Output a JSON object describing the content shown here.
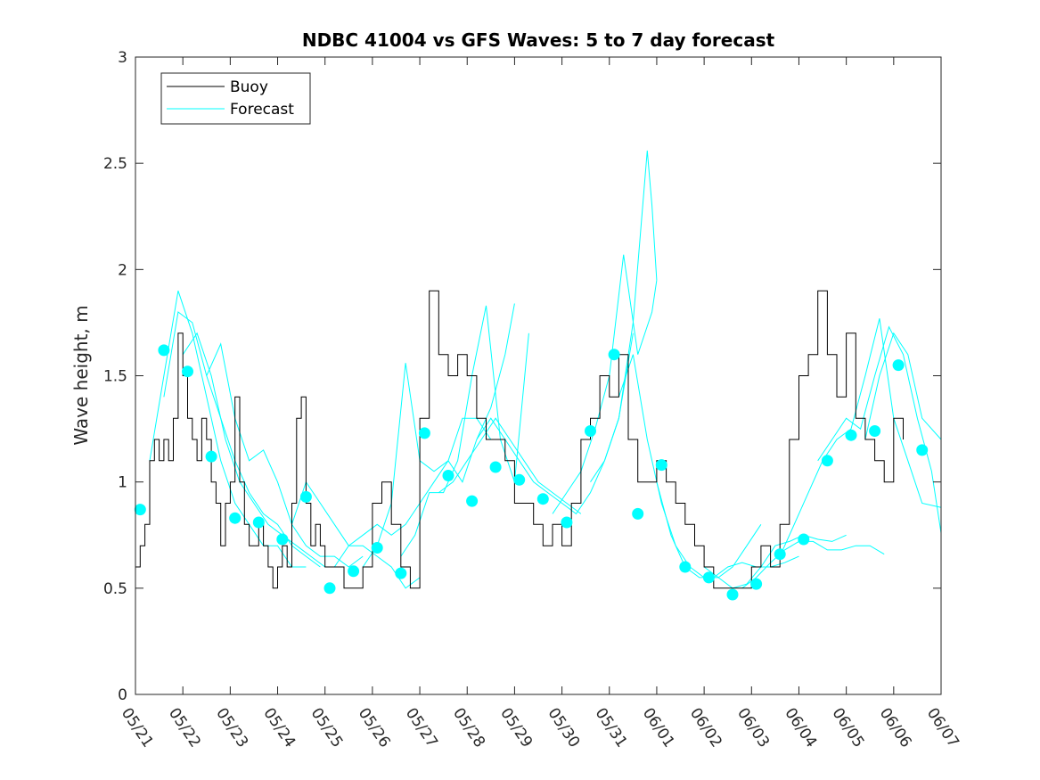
{
  "chart_data": {
    "type": "line",
    "title": "NDBC 41004 vs GFS Waves: 5 to 7 day forecast",
    "xlabel": "",
    "ylabel": "Wave height, m",
    "ylim": [
      0,
      3
    ],
    "xlim": [
      "05/21",
      "06/07"
    ],
    "yticks": [
      0,
      0.5,
      1,
      1.5,
      2,
      2.5,
      3
    ],
    "xticks": [
      "05/21",
      "05/22",
      "05/23",
      "05/24",
      "05/25",
      "05/26",
      "05/27",
      "05/28",
      "05/29",
      "05/30",
      "05/31",
      "06/01",
      "06/02",
      "06/03",
      "06/04",
      "06/05",
      "06/06",
      "06/07"
    ],
    "legend": {
      "position": "top-left",
      "entries": [
        "Buoy",
        "Forecast"
      ]
    },
    "colors": {
      "buoy": "#000000",
      "forecast": "#00ffff",
      "markers": "#00ffff"
    },
    "grid": false,
    "buoy": {
      "name": "Buoy",
      "x_days": [
        0,
        0.1,
        0.2,
        0.3,
        0.4,
        0.5,
        0.6,
        0.7,
        0.8,
        0.9,
        1.0,
        1.1,
        1.2,
        1.3,
        1.4,
        1.5,
        1.6,
        1.7,
        1.8,
        1.9,
        2.0,
        2.1,
        2.2,
        2.3,
        2.4,
        2.5,
        2.6,
        2.7,
        2.8,
        2.9,
        3.0,
        3.1,
        3.2,
        3.3,
        3.4,
        3.5,
        3.6,
        3.7,
        3.8,
        3.9,
        4.0,
        4.2,
        4.4,
        4.6,
        4.8,
        5.0,
        5.2,
        5.4,
        5.6,
        5.8,
        6.0,
        6.2,
        6.4,
        6.6,
        6.8,
        7.0,
        7.2,
        7.4,
        7.6,
        7.8,
        8.0,
        8.2,
        8.4,
        8.6,
        8.8,
        9.0,
        9.2,
        9.4,
        9.6,
        9.8,
        10.0,
        10.2,
        10.4,
        10.6,
        10.8,
        11.0,
        11.2,
        11.4,
        11.6,
        11.8,
        12.0,
        12.2,
        12.4,
        12.6,
        12.8,
        13.0,
        13.2,
        13.4,
        13.6,
        13.8,
        14.0,
        14.2,
        14.4,
        14.6,
        14.8,
        15.0,
        15.2,
        15.4,
        15.6,
        15.8,
        16.0,
        16.2
      ],
      "values": [
        0.6,
        0.7,
        0.8,
        1.1,
        1.2,
        1.1,
        1.2,
        1.1,
        1.3,
        1.7,
        1.5,
        1.3,
        1.2,
        1.1,
        1.3,
        1.2,
        1.0,
        0.9,
        0.7,
        0.9,
        1.0,
        1.4,
        1.0,
        0.8,
        0.7,
        0.7,
        0.8,
        0.7,
        0.6,
        0.5,
        0.6,
        0.7,
        0.6,
        0.9,
        1.3,
        1.4,
        0.9,
        0.7,
        0.8,
        0.7,
        0.6,
        0.6,
        0.5,
        0.5,
        0.6,
        0.9,
        1.0,
        0.8,
        0.6,
        0.5,
        1.3,
        1.9,
        1.6,
        1.5,
        1.6,
        1.5,
        1.3,
        1.2,
        1.2,
        1.1,
        0.9,
        0.9,
        0.8,
        0.7,
        0.8,
        0.7,
        0.9,
        1.2,
        1.3,
        1.5,
        1.4,
        1.6,
        1.2,
        1.0,
        1.0,
        1.1,
        1.0,
        0.9,
        0.8,
        0.7,
        0.6,
        0.5,
        0.5,
        0.5,
        0.5,
        0.6,
        0.7,
        0.6,
        0.8,
        1.2,
        1.5,
        1.6,
        1.9,
        1.6,
        1.4,
        1.7,
        1.3,
        1.2,
        1.1,
        1.0,
        1.3,
        1.2
      ]
    },
    "forecast_runs": [
      {
        "x_days": [
          0.3,
          0.6,
          0.9,
          1.2,
          1.5,
          1.8,
          2.1,
          2.4,
          2.7,
          3.0,
          3.3,
          3.6
        ],
        "values": [
          1.1,
          1.5,
          1.9,
          1.7,
          1.4,
          1.1,
          0.9,
          0.8,
          0.7,
          0.7,
          0.6,
          0.6
        ]
      },
      {
        "x_days": [
          0.6,
          0.9,
          1.2,
          1.5,
          1.8,
          2.1,
          2.4,
          2.7,
          3.0,
          3.3,
          3.6,
          3.9
        ],
        "values": [
          1.4,
          1.8,
          1.75,
          1.5,
          1.3,
          1.1,
          0.95,
          0.85,
          0.8,
          0.7,
          0.65,
          0.6
        ]
      },
      {
        "x_days": [
          1.0,
          1.3,
          1.6,
          1.9,
          2.2,
          2.5,
          2.8,
          3.1,
          3.4,
          3.7,
          4.0,
          4.3
        ],
        "values": [
          1.6,
          1.7,
          1.5,
          1.2,
          1.0,
          0.9,
          0.8,
          0.75,
          0.7,
          0.65,
          0.6,
          0.6
        ]
      },
      {
        "x_days": [
          1.5,
          1.8,
          2.1,
          2.4,
          2.7,
          3.0,
          3.3,
          3.6,
          3.9,
          4.2,
          4.5,
          4.8
        ],
        "values": [
          1.5,
          1.65,
          1.3,
          1.1,
          1.15,
          1.0,
          0.8,
          0.7,
          0.65,
          0.65,
          0.6,
          0.65
        ]
      },
      {
        "x_days": [
          3.3,
          3.6,
          3.9,
          4.2,
          4.5,
          4.8,
          5.1,
          5.4,
          5.7,
          6.0
        ],
        "values": [
          0.8,
          1.0,
          0.9,
          0.8,
          0.7,
          0.7,
          0.65,
          0.6,
          0.5,
          0.55
        ]
      },
      {
        "x_days": [
          4.2,
          4.5,
          4.8,
          5.1,
          5.4,
          5.7,
          6.0,
          6.3,
          6.6,
          6.9,
          7.2,
          7.5
        ],
        "values": [
          0.6,
          0.7,
          0.75,
          0.8,
          0.75,
          0.8,
          0.9,
          1.0,
          1.1,
          1.3,
          1.3,
          1.2
        ]
      },
      {
        "x_days": [
          4.8,
          5.1,
          5.4,
          5.7,
          6.0,
          6.3,
          6.6,
          6.9,
          7.2,
          7.5,
          7.8,
          8.0
        ],
        "values": [
          0.6,
          0.7,
          0.9,
          1.56,
          1.1,
          1.05,
          1.1,
          1.0,
          1.2,
          1.35,
          1.6,
          1.84
        ]
      },
      {
        "x_days": [
          5.6,
          5.9,
          6.2,
          6.5,
          6.8,
          7.1,
          7.4,
          7.7,
          8.0,
          8.3
        ],
        "values": [
          0.65,
          0.75,
          0.95,
          0.95,
          1.1,
          1.5,
          1.83,
          1.2,
          1.0,
          1.7
        ]
      },
      {
        "x_days": [
          6.4,
          6.7,
          7.0,
          7.3,
          7.6,
          7.9,
          8.2,
          8.5,
          8.8,
          9.1,
          9.4
        ],
        "values": [
          0.95,
          1.0,
          1.1,
          1.2,
          1.3,
          1.2,
          1.1,
          1.0,
          0.95,
          0.9,
          0.85
        ]
      },
      {
        "x_days": [
          7.2,
          7.5,
          7.8,
          8.1,
          8.4,
          8.7,
          9.0,
          9.3,
          9.6,
          9.9,
          10.2,
          10.5
        ],
        "values": [
          1.2,
          1.3,
          1.2,
          1.1,
          1.0,
          0.95,
          0.9,
          0.85,
          0.95,
          1.1,
          1.3,
          1.7
        ]
      },
      {
        "x_days": [
          8.8,
          9.1,
          9.4,
          9.7,
          10.0,
          10.3,
          10.6,
          10.9,
          11.0
        ],
        "values": [
          0.85,
          0.95,
          1.05,
          1.25,
          1.5,
          2.07,
          1.6,
          1.8,
          1.95
        ]
      },
      {
        "x_days": [
          9.6,
          9.9,
          10.2,
          10.5,
          10.8,
          10.9,
          11.0
        ],
        "values": [
          1.0,
          1.1,
          1.3,
          1.75,
          2.56,
          2.3,
          1.95
        ]
      },
      {
        "x_days": [
          10.2,
          10.5,
          10.8,
          11.1,
          11.4,
          11.7,
          12.0,
          12.3,
          12.6,
          12.9,
          13.2
        ],
        "values": [
          1.4,
          1.6,
          1.2,
          0.9,
          0.7,
          0.6,
          0.55,
          0.55,
          0.6,
          0.7,
          0.8
        ]
      },
      {
        "x_days": [
          11.0,
          11.3,
          11.6,
          11.9,
          12.2,
          12.5,
          12.8,
          13.1,
          13.4,
          13.7,
          14.0
        ],
        "values": [
          1.0,
          0.75,
          0.6,
          0.55,
          0.55,
          0.6,
          0.62,
          0.6,
          0.6,
          0.62,
          0.65
        ]
      },
      {
        "x_days": [
          12.0,
          12.3,
          12.6,
          12.9,
          13.2,
          13.5,
          13.8,
          14.1,
          14.4,
          14.7,
          15.0
        ],
        "values": [
          0.6,
          0.55,
          0.5,
          0.52,
          0.6,
          0.7,
          0.72,
          0.75,
          0.73,
          0.72,
          0.75
        ]
      },
      {
        "x_days": [
          12.8,
          13.1,
          13.4,
          13.7,
          14.0,
          14.3,
          14.6,
          14.9,
          15.2,
          15.5,
          15.8
        ],
        "values": [
          0.5,
          0.55,
          0.62,
          0.68,
          0.72,
          0.72,
          0.68,
          0.68,
          0.7,
          0.7,
          0.66
        ]
      },
      {
        "x_days": [
          13.6,
          13.9,
          14.2,
          14.5,
          14.8,
          15.1,
          15.4,
          15.7,
          16.0,
          16.3,
          16.6,
          17.0
        ],
        "values": [
          0.65,
          0.8,
          0.95,
          1.1,
          1.2,
          1.25,
          1.5,
          1.77,
          1.3,
          1.1,
          0.9,
          0.88
        ]
      },
      {
        "x_days": [
          14.4,
          14.7,
          15.0,
          15.3,
          15.6,
          15.9,
          16.2,
          16.5,
          16.8,
          17.0
        ],
        "values": [
          1.1,
          1.2,
          1.3,
          1.25,
          1.5,
          1.73,
          1.6,
          1.3,
          1.05,
          0.76
        ]
      },
      {
        "x_days": [
          15.4,
          15.7,
          16.0,
          16.3,
          16.6,
          17.0
        ],
        "values": [
          1.2,
          1.5,
          1.7,
          1.6,
          1.3,
          1.2
        ]
      }
    ],
    "markers": {
      "x_days": [
        0.1,
        0.6,
        1.1,
        1.6,
        2.1,
        2.6,
        3.1,
        3.6,
        4.1,
        4.6,
        5.1,
        5.6,
        6.1,
        6.6,
        7.1,
        7.6,
        8.1,
        8.6,
        9.1,
        9.6,
        10.1,
        10.6,
        11.1,
        11.6,
        12.1,
        12.6,
        13.1,
        13.6,
        14.1,
        14.6,
        15.1,
        15.6,
        16.1,
        16.6
      ],
      "values": [
        0.87,
        1.62,
        1.52,
        1.12,
        0.83,
        0.81,
        0.73,
        0.93,
        0.5,
        0.58,
        0.69,
        0.57,
        1.23,
        1.03,
        0.91,
        1.07,
        1.01,
        0.92,
        0.81,
        1.24,
        1.6,
        0.85,
        1.08,
        0.6,
        0.55,
        0.47,
        0.52,
        0.66,
        0.73,
        1.1,
        1.22,
        1.24,
        1.55,
        1.15
      ]
    }
  }
}
